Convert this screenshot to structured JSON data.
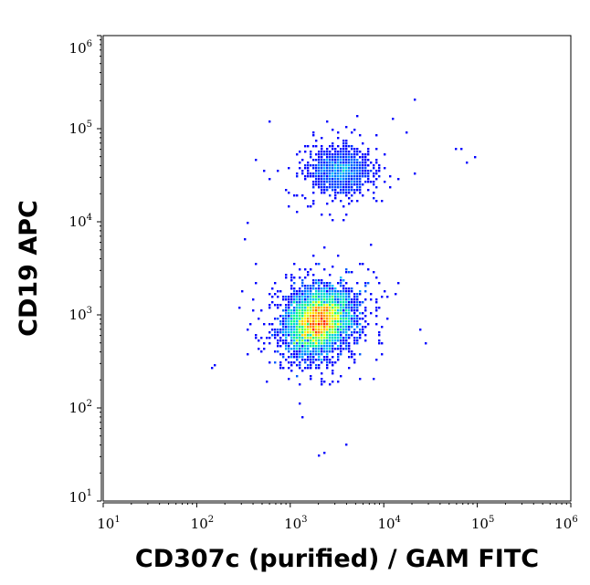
{
  "chart_data": {
    "type": "scatter",
    "subtype": "flow-cytometry-density-dot-plot",
    "xlabel": "CD307c (purified) / GAM FITC",
    "ylabel": "CD19 APC",
    "xscale": "log",
    "yscale": "log",
    "xlim": [
      10,
      1000000
    ],
    "ylim": [
      10,
      1000000
    ],
    "x_ticks": [
      {
        "base": "10",
        "exp": "1"
      },
      {
        "base": "10",
        "exp": "2"
      },
      {
        "base": "10",
        "exp": "3"
      },
      {
        "base": "10",
        "exp": "4"
      },
      {
        "base": "10",
        "exp": "5"
      },
      {
        "base": "10",
        "exp": "6"
      }
    ],
    "y_ticks": [
      {
        "base": "10",
        "exp": "1"
      },
      {
        "base": "10",
        "exp": "2"
      },
      {
        "base": "10",
        "exp": "3"
      },
      {
        "base": "10",
        "exp": "4"
      },
      {
        "base": "10",
        "exp": "5"
      },
      {
        "base": "10",
        "exp": "6"
      }
    ],
    "grid": false,
    "legend": "none",
    "color_scale": [
      "#0000ff",
      "#00bfff",
      "#00ff80",
      "#ffff00",
      "#ff8000",
      "#ff0000"
    ],
    "populations": [
      {
        "center_x": 2000,
        "center_y": 850,
        "spread_log_x": 0.16,
        "spread_log_y": 0.16,
        "relative_count": 0.78,
        "peak_color": "#ff0000"
      },
      {
        "center_x": 3500,
        "center_y": 35000,
        "spread_log_x": 0.15,
        "spread_log_y": 0.11,
        "relative_count": 0.22,
        "peak_color": "#00bfff"
      }
    ],
    "outlier_points": [
      {
        "x": 21000,
        "y": 200000
      },
      {
        "x": 13000,
        "y": 130000
      },
      {
        "x": 420,
        "y": 45000
      },
      {
        "x": 350,
        "y": 10000
      },
      {
        "x": 340,
        "y": 6500
      },
      {
        "x": 280,
        "y": 1150
      },
      {
        "x": 430,
        "y": 2200
      },
      {
        "x": 2000,
        "y": 30
      },
      {
        "x": 2400,
        "y": 33
      },
      {
        "x": 3900,
        "y": 40
      },
      {
        "x": 60000,
        "y": 60000
      },
      {
        "x": 80000,
        "y": 42000
      },
      {
        "x": 95000,
        "y": 50000
      },
      {
        "x": 70000,
        "y": 60000
      },
      {
        "x": 25000,
        "y": 700
      },
      {
        "x": 29000,
        "y": 500
      }
    ]
  }
}
